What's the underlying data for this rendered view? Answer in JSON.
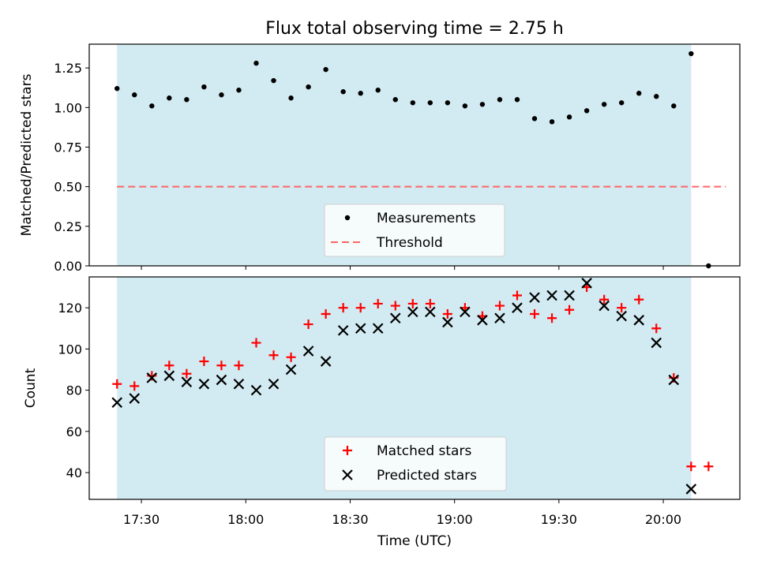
{
  "chart_data": {
    "title": "Flux total observing time = 2.75 h",
    "xlabel": "Time (UTC)",
    "x_ticks": [
      "17:30",
      "18:00",
      "18:30",
      "19:00",
      "19:30",
      "20:00"
    ],
    "xlim": [
      "17:15",
      "20:22"
    ],
    "shaded_span": [
      "17:23",
      "20:08"
    ],
    "shade_color": "#add8e6",
    "panels": [
      {
        "type": "scatter",
        "ylabel": "Matched/Predicted stars",
        "ylim": [
          0,
          1.4
        ],
        "y_ticks": [
          "0.00",
          "0.25",
          "0.50",
          "0.75",
          "1.00",
          "1.25"
        ],
        "legend": {
          "position": "lower-center"
        },
        "threshold": {
          "name": "Threshold",
          "value": 0.5,
          "x_range": [
            "17:23",
            "20:18"
          ],
          "color": "#ff6666"
        },
        "series": [
          {
            "name": "Measurements",
            "marker": "dot",
            "color": "#000000",
            "points": [
              [
                "17:23",
                1.12
              ],
              [
                "17:28",
                1.08
              ],
              [
                "17:33",
                1.01
              ],
              [
                "17:38",
                1.06
              ],
              [
                "17:43",
                1.05
              ],
              [
                "17:48",
                1.13
              ],
              [
                "17:53",
                1.08
              ],
              [
                "17:58",
                1.11
              ],
              [
                "18:03",
                1.28
              ],
              [
                "18:08",
                1.17
              ],
              [
                "18:13",
                1.06
              ],
              [
                "18:18",
                1.13
              ],
              [
                "18:23",
                1.24
              ],
              [
                "18:28",
                1.1
              ],
              [
                "18:33",
                1.09
              ],
              [
                "18:38",
                1.11
              ],
              [
                "18:43",
                1.05
              ],
              [
                "18:48",
                1.03
              ],
              [
                "18:53",
                1.03
              ],
              [
                "18:58",
                1.03
              ],
              [
                "19:03",
                1.01
              ],
              [
                "19:08",
                1.02
              ],
              [
                "19:13",
                1.05
              ],
              [
                "19:18",
                1.05
              ],
              [
                "19:23",
                0.93
              ],
              [
                "19:28",
                0.91
              ],
              [
                "19:33",
                0.94
              ],
              [
                "19:38",
                0.98
              ],
              [
                "19:43",
                1.02
              ],
              [
                "19:48",
                1.03
              ],
              [
                "19:53",
                1.09
              ],
              [
                "19:58",
                1.07
              ],
              [
                "20:03",
                1.01
              ],
              [
                "20:08",
                1.34
              ],
              [
                "20:13",
                0.0
              ]
            ]
          }
        ]
      },
      {
        "type": "scatter",
        "ylabel": "Count",
        "ylim": [
          27,
          135
        ],
        "y_ticks": [
          "40",
          "60",
          "80",
          "100",
          "120"
        ],
        "legend": {
          "position": "lower-center"
        },
        "series": [
          {
            "name": "Matched stars",
            "marker": "plus",
            "color": "#ff0000",
            "points": [
              [
                "17:23",
                83
              ],
              [
                "17:28",
                82
              ],
              [
                "17:33",
                87
              ],
              [
                "17:38",
                92
              ],
              [
                "17:43",
                88
              ],
              [
                "17:48",
                94
              ],
              [
                "17:53",
                92
              ],
              [
                "17:58",
                92
              ],
              [
                "18:03",
                103
              ],
              [
                "18:08",
                97
              ],
              [
                "18:13",
                96
              ],
              [
                "18:18",
                112
              ],
              [
                "18:23",
                117
              ],
              [
                "18:28",
                120
              ],
              [
                "18:33",
                120
              ],
              [
                "18:38",
                122
              ],
              [
                "18:43",
                121
              ],
              [
                "18:48",
                122
              ],
              [
                "18:53",
                122
              ],
              [
                "18:58",
                117
              ],
              [
                "19:03",
                120
              ],
              [
                "19:08",
                116
              ],
              [
                "19:13",
                121
              ],
              [
                "19:18",
                126
              ],
              [
                "19:23",
                117
              ],
              [
                "19:28",
                115
              ],
              [
                "19:33",
                119
              ],
              [
                "19:38",
                130
              ],
              [
                "19:43",
                124
              ],
              [
                "19:48",
                120
              ],
              [
                "19:53",
                124
              ],
              [
                "19:58",
                110
              ],
              [
                "20:03",
                86
              ],
              [
                "20:08",
                43
              ],
              [
                "20:13",
                43
              ]
            ]
          },
          {
            "name": "Predicted stars",
            "marker": "x",
            "color": "#000000",
            "points": [
              [
                "17:23",
                74
              ],
              [
                "17:28",
                76
              ],
              [
                "17:33",
                86
              ],
              [
                "17:38",
                87
              ],
              [
                "17:43",
                84
              ],
              [
                "17:48",
                83
              ],
              [
                "17:53",
                85
              ],
              [
                "17:58",
                83
              ],
              [
                "18:03",
                80
              ],
              [
                "18:08",
                83
              ],
              [
                "18:13",
                90
              ],
              [
                "18:18",
                99
              ],
              [
                "18:23",
                94
              ],
              [
                "18:28",
                109
              ],
              [
                "18:33",
                110
              ],
              [
                "18:38",
                110
              ],
              [
                "18:43",
                115
              ],
              [
                "18:48",
                118
              ],
              [
                "18:53",
                118
              ],
              [
                "18:58",
                113
              ],
              [
                "19:03",
                118
              ],
              [
                "19:08",
                114
              ],
              [
                "19:13",
                115
              ],
              [
                "19:18",
                120
              ],
              [
                "19:23",
                125
              ],
              [
                "19:28",
                126
              ],
              [
                "19:33",
                126
              ],
              [
                "19:38",
                132
              ],
              [
                "19:43",
                121
              ],
              [
                "19:48",
                116
              ],
              [
                "19:53",
                114
              ],
              [
                "19:58",
                103
              ],
              [
                "20:03",
                85
              ],
              [
                "20:08",
                32
              ]
            ]
          }
        ]
      }
    ]
  }
}
